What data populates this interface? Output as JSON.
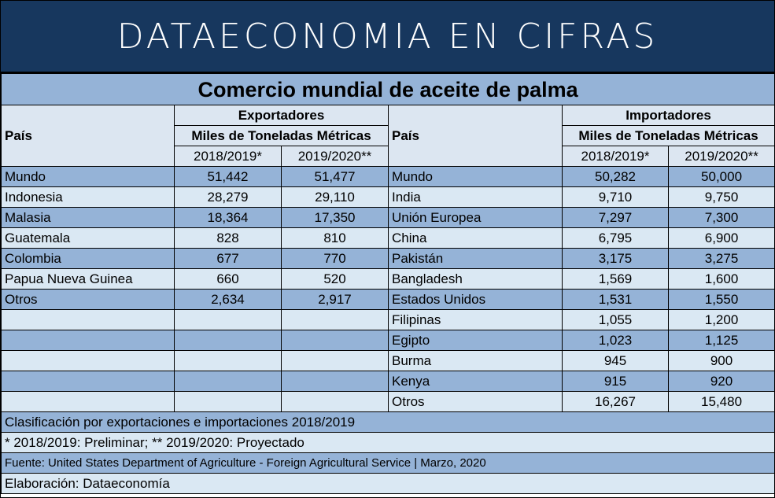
{
  "banner": "DATAECONOMIA EN CIFRAS",
  "title": "Comercio mundial de aceite de palma",
  "exporters": {
    "label": "Exportadores",
    "units": "Miles de Toneladas Métricas",
    "country_header": "País",
    "year1": "2018/2019*",
    "year2": "2019/2020**",
    "rows": [
      {
        "country": "Mundo",
        "v1": "51,442",
        "v2": "51,477"
      },
      {
        "country": "Indonesia",
        "v1": "28,279",
        "v2": "29,110"
      },
      {
        "country": "Malasia",
        "v1": "18,364",
        "v2": "17,350"
      },
      {
        "country": "Guatemala",
        "v1": "828",
        "v2": "810"
      },
      {
        "country": "Colombia",
        "v1": "677",
        "v2": "770"
      },
      {
        "country": "Papua Nueva Guinea",
        "v1": "660",
        "v2": "520"
      },
      {
        "country": "Otros",
        "v1": "2,634",
        "v2": "2,917"
      },
      {
        "country": "",
        "v1": "",
        "v2": ""
      },
      {
        "country": "",
        "v1": "",
        "v2": ""
      },
      {
        "country": "",
        "v1": "",
        "v2": ""
      },
      {
        "country": "",
        "v1": "",
        "v2": ""
      },
      {
        "country": "",
        "v1": "",
        "v2": ""
      }
    ]
  },
  "importers": {
    "label": "Importadores",
    "units": "Miles de Toneladas Métricas",
    "country_header": "País",
    "year1": "2018/2019*",
    "year2": "2019/2020**",
    "rows": [
      {
        "country": "Mundo",
        "v1": "50,282",
        "v2": "50,000"
      },
      {
        "country": "India",
        "v1": "9,710",
        "v2": "9,750"
      },
      {
        "country": "Unión Europea",
        "v1": "7,297",
        "v2": "7,300"
      },
      {
        "country": "China",
        "v1": "6,795",
        "v2": "6,900"
      },
      {
        "country": "Pakistán",
        "v1": "3,175",
        "v2": "3,275"
      },
      {
        "country": "Bangladesh",
        "v1": "1,569",
        "v2": "1,600"
      },
      {
        "country": "Estados Unidos",
        "v1": "1,531",
        "v2": "1,550"
      },
      {
        "country": "Filipinas",
        "v1": "1,055",
        "v2": "1,200"
      },
      {
        "country": "Egipto",
        "v1": "1,023",
        "v2": "1,125"
      },
      {
        "country": "Burma",
        "v1": "945",
        "v2": "900"
      },
      {
        "country": "Kenya",
        "v1": "915",
        "v2": "920"
      },
      {
        "country": "Otros",
        "v1": "16,267",
        "v2": "15,480"
      }
    ]
  },
  "footer": {
    "classification": "Clasificación por exportaciones e importaciones 2018/2019",
    "notes": "* 2018/2019: Preliminar; ** 2019/2020: Proyectado",
    "source": "Fuente: United States Department of Agriculture - Foreign Agricultural Service | Marzo, 2020",
    "credit": "Elaboración: Dataeconomía"
  },
  "colors": {
    "banner_bg": "#17375e",
    "row_dark": "#95b3d7",
    "row_light": "#dae8f3",
    "header_bg": "#dce6f1"
  }
}
